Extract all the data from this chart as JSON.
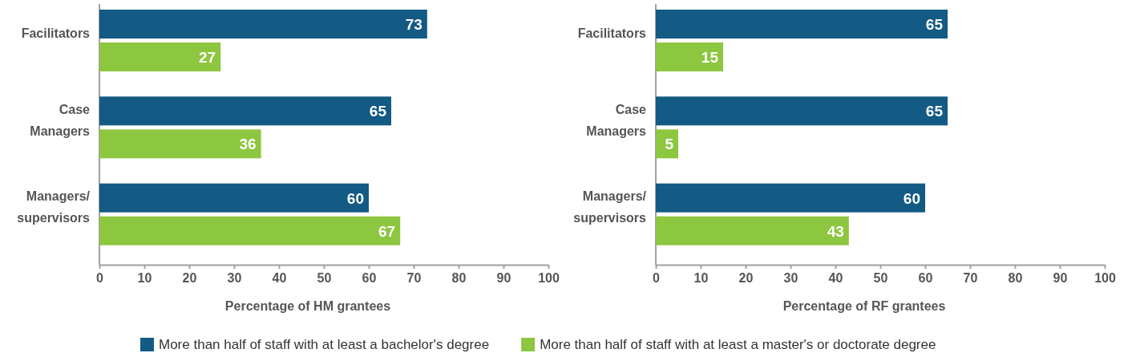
{
  "chart_data": [
    {
      "type": "bar",
      "orientation": "horizontal",
      "categories": [
        "Facilitators",
        "Case Managers",
        "Managers/supervisors"
      ],
      "xlabel": "Percentage of HM grantees",
      "xlim": [
        0,
        100
      ],
      "xticks": [
        0,
        10,
        20,
        30,
        40,
        50,
        60,
        70,
        80,
        90,
        100
      ],
      "data_labels": true,
      "legend": "bottom",
      "series": [
        {
          "name": "More than half of staff with at least a bachelor's degree",
          "color": "#135a84",
          "values": [
            73,
            65,
            60
          ]
        },
        {
          "name": "More than half of staff with at least a master's or doctorate degree",
          "color": "#8dc63f",
          "values": [
            27,
            36,
            67
          ]
        }
      ]
    },
    {
      "type": "bar",
      "orientation": "horizontal",
      "categories": [
        "Facilitators",
        "Case Managers",
        "Managers/supervisors"
      ],
      "xlabel": "Percentage of RF grantees",
      "xlim": [
        0,
        100
      ],
      "xticks": [
        0,
        10,
        20,
        30,
        40,
        50,
        60,
        70,
        80,
        90,
        100
      ],
      "data_labels": true,
      "series": [
        {
          "color": "#135a84",
          "values": [
            65,
            65,
            60
          ]
        },
        {
          "color": "#8dc63f",
          "values": [
            15,
            5,
            43
          ]
        }
      ]
    }
  ]
}
